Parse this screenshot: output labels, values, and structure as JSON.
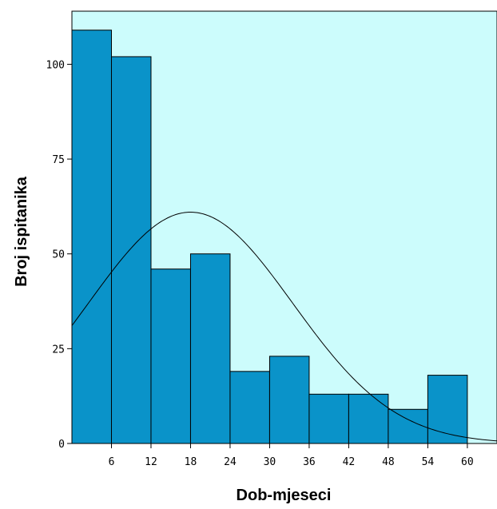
{
  "chart_data": {
    "type": "bar",
    "subtype": "histogram",
    "xlabel": "Dob-mjeseci",
    "ylabel": "Broj ispitanika",
    "bin_edges": [
      0,
      6,
      12,
      18,
      24,
      30,
      36,
      42,
      48,
      54,
      60
    ],
    "values": [
      109,
      102,
      46,
      50,
      19,
      23,
      13,
      13,
      9,
      18
    ],
    "x_ticks": [
      6,
      12,
      18,
      24,
      30,
      36,
      42,
      48,
      54,
      60
    ],
    "y_ticks": [
      0,
      25,
      50,
      75,
      100
    ],
    "xlim": [
      0,
      64.5
    ],
    "ylim": [
      0,
      114
    ],
    "normal_curve": {
      "mean": 18,
      "sd": 15.5,
      "peak": 61
    },
    "colors": {
      "plot_background": "#ccfcfc",
      "bar_fill": "#0a93c9",
      "bar_stroke": "#000000",
      "curve": "#000000"
    }
  }
}
